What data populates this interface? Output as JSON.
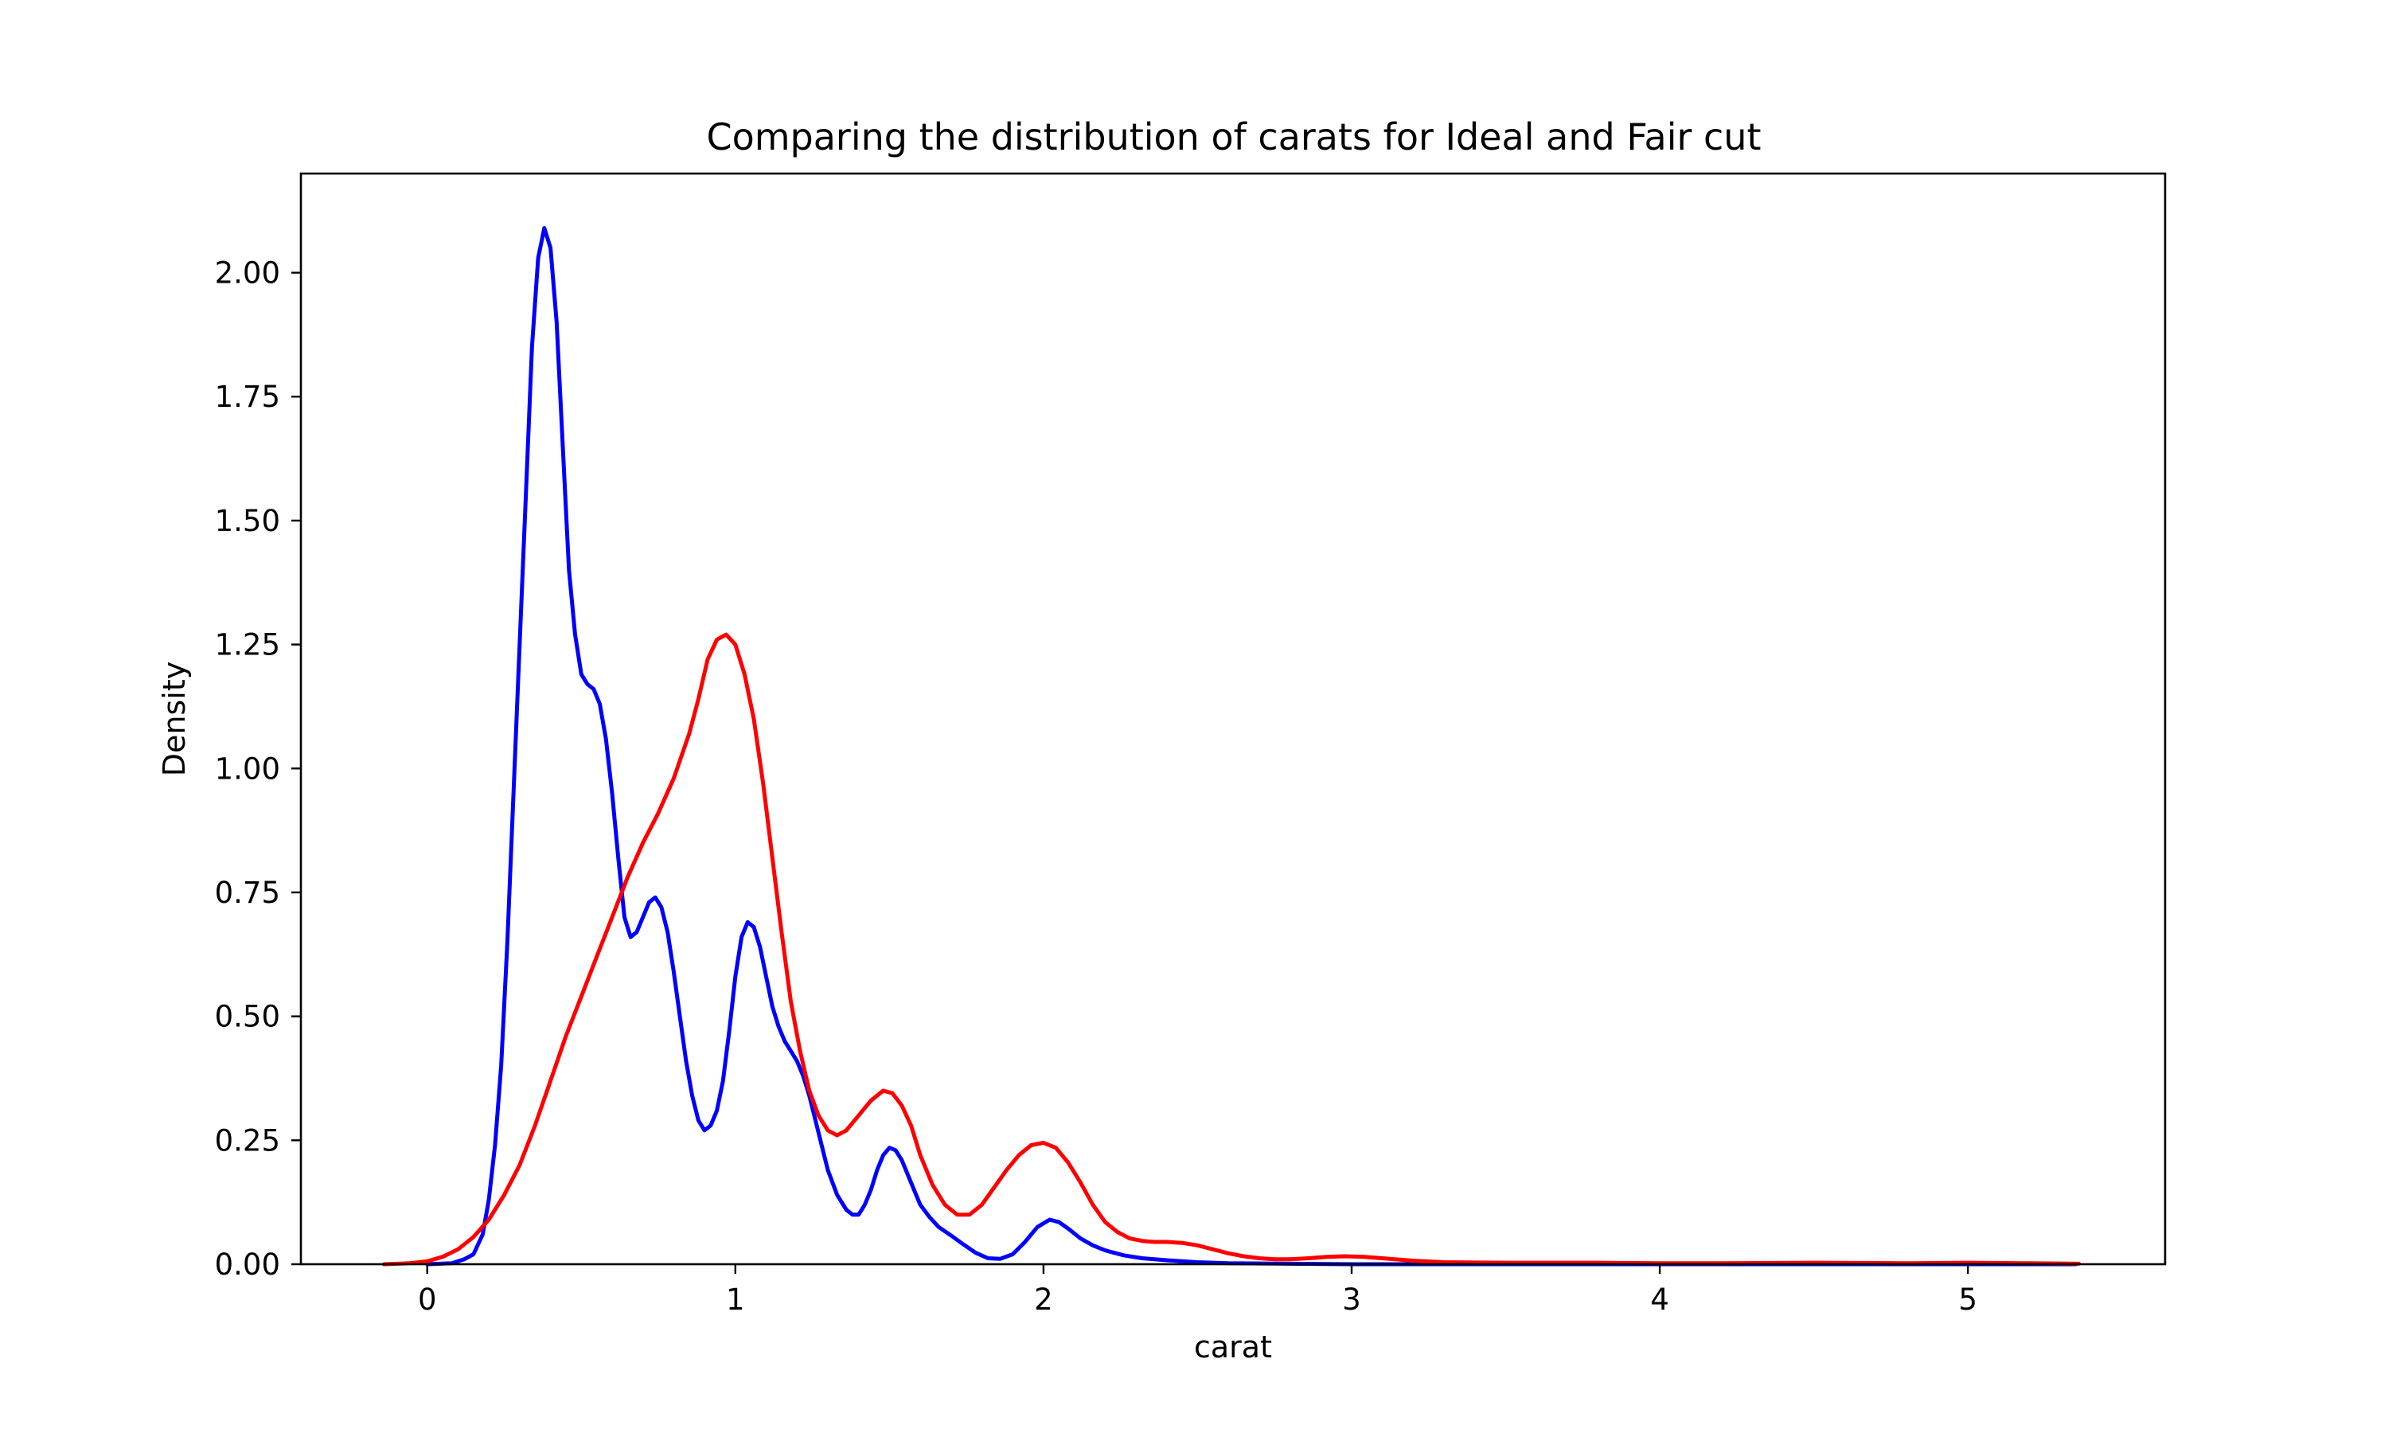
{
  "chart_data": {
    "type": "line",
    "title": "Comparing the distribution of carats for Ideal and Fair cut",
    "xlabel": "carat",
    "ylabel": "Density",
    "xlim": [
      -0.41,
      5.64
    ],
    "ylim": [
      0,
      2.2
    ],
    "xticks": [
      0,
      1,
      2,
      3,
      4,
      5
    ],
    "xtick_labels": [
      "0",
      "1",
      "2",
      "3",
      "4",
      "5"
    ],
    "yticks": [
      0,
      0.25,
      0.5,
      0.75,
      1.0,
      1.25,
      1.5,
      1.75,
      2.0
    ],
    "ytick_labels": [
      "0.00",
      "0.25",
      "0.50",
      "0.75",
      "1.00",
      "1.25",
      "1.50",
      "1.75",
      "2.00"
    ],
    "grid": false,
    "legend": "none",
    "series": [
      {
        "color": "#0000ff",
        "x": [
          0.0,
          0.08,
          0.12,
          0.15,
          0.18,
          0.2,
          0.22,
          0.24,
          0.26,
          0.28,
          0.3,
          0.32,
          0.34,
          0.36,
          0.38,
          0.4,
          0.42,
          0.44,
          0.46,
          0.48,
          0.5,
          0.52,
          0.54,
          0.56,
          0.58,
          0.6,
          0.62,
          0.64,
          0.66,
          0.68,
          0.7,
          0.72,
          0.74,
          0.76,
          0.78,
          0.8,
          0.82,
          0.84,
          0.86,
          0.88,
          0.9,
          0.92,
          0.94,
          0.96,
          0.98,
          1.0,
          1.02,
          1.04,
          1.06,
          1.08,
          1.1,
          1.12,
          1.14,
          1.16,
          1.18,
          1.2,
          1.22,
          1.24,
          1.26,
          1.28,
          1.3,
          1.33,
          1.36,
          1.38,
          1.4,
          1.42,
          1.44,
          1.46,
          1.48,
          1.5,
          1.52,
          1.54,
          1.56,
          1.58,
          1.6,
          1.63,
          1.66,
          1.7,
          1.74,
          1.78,
          1.82,
          1.86,
          1.9,
          1.94,
          1.98,
          2.02,
          2.05,
          2.08,
          2.12,
          2.16,
          2.2,
          2.26,
          2.32,
          2.4,
          2.5,
          2.6,
          2.8,
          3.0,
          3.5,
          4.0,
          4.5,
          5.0,
          5.35
        ],
        "y": [
          0.0,
          0.002,
          0.01,
          0.02,
          0.06,
          0.13,
          0.24,
          0.4,
          0.65,
          0.95,
          1.25,
          1.55,
          1.85,
          2.03,
          2.09,
          2.05,
          1.9,
          1.65,
          1.4,
          1.27,
          1.19,
          1.17,
          1.16,
          1.13,
          1.06,
          0.95,
          0.82,
          0.7,
          0.66,
          0.67,
          0.7,
          0.73,
          0.74,
          0.72,
          0.67,
          0.59,
          0.5,
          0.41,
          0.34,
          0.29,
          0.27,
          0.28,
          0.31,
          0.37,
          0.47,
          0.58,
          0.66,
          0.69,
          0.68,
          0.64,
          0.58,
          0.52,
          0.48,
          0.45,
          0.43,
          0.41,
          0.38,
          0.34,
          0.29,
          0.24,
          0.19,
          0.14,
          0.11,
          0.1,
          0.1,
          0.12,
          0.15,
          0.19,
          0.22,
          0.235,
          0.23,
          0.21,
          0.18,
          0.15,
          0.12,
          0.095,
          0.075,
          0.058,
          0.04,
          0.023,
          0.012,
          0.011,
          0.02,
          0.045,
          0.075,
          0.09,
          0.085,
          0.072,
          0.052,
          0.038,
          0.028,
          0.018,
          0.012,
          0.008,
          0.004,
          0.002,
          0.001,
          0.0,
          0.0,
          0.0,
          0.0,
          0.0,
          0.0
        ]
      },
      {
        "color": "#ff0000",
        "x": [
          -0.14,
          -0.06,
          0.0,
          0.05,
          0.1,
          0.15,
          0.2,
          0.25,
          0.3,
          0.35,
          0.4,
          0.45,
          0.5,
          0.55,
          0.6,
          0.65,
          0.7,
          0.75,
          0.8,
          0.85,
          0.88,
          0.91,
          0.94,
          0.97,
          1.0,
          1.03,
          1.06,
          1.09,
          1.12,
          1.15,
          1.18,
          1.21,
          1.24,
          1.27,
          1.3,
          1.33,
          1.36,
          1.4,
          1.44,
          1.48,
          1.51,
          1.54,
          1.57,
          1.6,
          1.64,
          1.68,
          1.72,
          1.76,
          1.8,
          1.84,
          1.88,
          1.92,
          1.96,
          2.0,
          2.04,
          2.08,
          2.12,
          2.16,
          2.2,
          2.24,
          2.28,
          2.32,
          2.36,
          2.4,
          2.45,
          2.5,
          2.55,
          2.6,
          2.65,
          2.7,
          2.75,
          2.8,
          2.86,
          2.92,
          2.98,
          3.04,
          3.1,
          3.2,
          3.3,
          3.5,
          3.8,
          4.0,
          4.2,
          4.5,
          4.8,
          5.0,
          5.2,
          5.36
        ],
        "y": [
          0.0,
          0.002,
          0.006,
          0.015,
          0.03,
          0.055,
          0.09,
          0.14,
          0.2,
          0.28,
          0.37,
          0.46,
          0.54,
          0.62,
          0.7,
          0.78,
          0.85,
          0.91,
          0.98,
          1.07,
          1.14,
          1.22,
          1.26,
          1.27,
          1.25,
          1.19,
          1.1,
          0.97,
          0.82,
          0.67,
          0.53,
          0.43,
          0.35,
          0.3,
          0.27,
          0.26,
          0.27,
          0.3,
          0.33,
          0.35,
          0.345,
          0.32,
          0.28,
          0.22,
          0.16,
          0.12,
          0.1,
          0.1,
          0.12,
          0.155,
          0.19,
          0.22,
          0.24,
          0.245,
          0.235,
          0.205,
          0.165,
          0.12,
          0.085,
          0.065,
          0.052,
          0.047,
          0.045,
          0.045,
          0.043,
          0.038,
          0.03,
          0.022,
          0.016,
          0.012,
          0.01,
          0.01,
          0.012,
          0.015,
          0.016,
          0.015,
          0.012,
          0.007,
          0.004,
          0.003,
          0.003,
          0.002,
          0.002,
          0.003,
          0.002,
          0.003,
          0.002,
          0.001
        ]
      }
    ]
  }
}
